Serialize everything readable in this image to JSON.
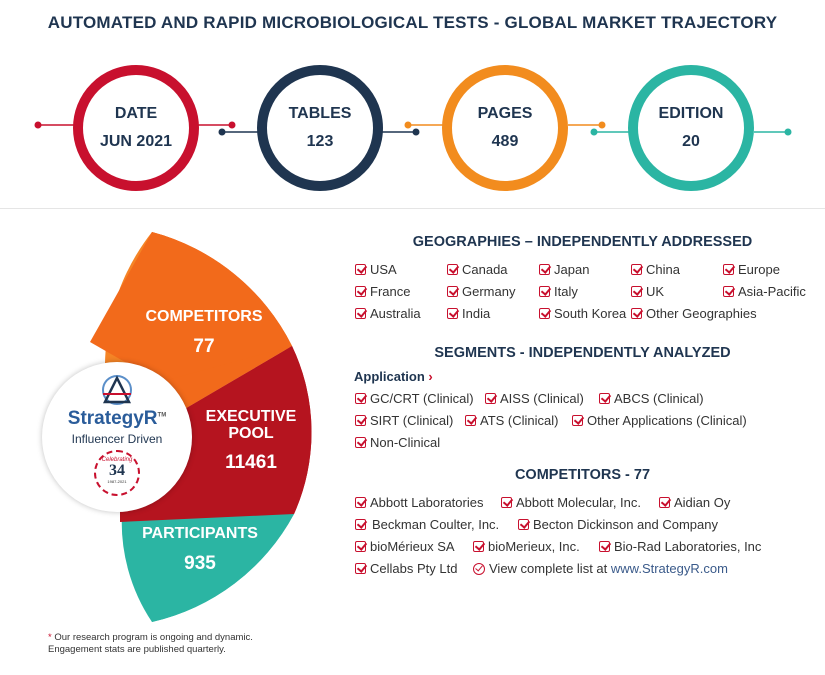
{
  "title": "AUTOMATED AND RAPID MICROBIOLOGICAL TESTS - GLOBAL MARKET TRAJECTORY",
  "stats": [
    {
      "label": "DATE",
      "value": "JUN 2021",
      "color": "#c8102e"
    },
    {
      "label": "TABLES",
      "value": "123",
      "color": "#1f3550"
    },
    {
      "label": "PAGES",
      "value": "489",
      "color": "#f28c1e"
    },
    {
      "label": "EDITION",
      "value": "20",
      "color": "#2bb5a3"
    }
  ],
  "left_panel": {
    "competitors": {
      "label": "COMPETITORS",
      "value": "77",
      "color": "#f26a1b"
    },
    "executive_pool": {
      "label": "EXECUTIVE POOL",
      "value": "11461",
      "color": "#b5141f"
    },
    "participants": {
      "label": "PARTICIPANTS",
      "value": "935",
      "color": "#2bb5a3"
    },
    "logo": {
      "brand": "StrategyR",
      "tm": "TM",
      "tagline": "Influencer Driven",
      "badge_number": "34",
      "badge_text": "Celebrating",
      "badge_years": "1987-2021"
    },
    "note_line1": "Our research program is ongoing and dynamic.",
    "note_line2": "Engagement stats are published quarterly.",
    "note_asterisk": "*"
  },
  "geographies": {
    "heading": "GEOGRAPHIES – INDEPENDENTLY ADDRESSED",
    "items": [
      "USA",
      "Canada",
      "Japan",
      "China",
      "Europe",
      "France",
      "Germany",
      "Italy",
      "UK",
      "Asia-Pacific",
      "Australia",
      "India",
      "South Korea",
      "Other Geographies"
    ]
  },
  "segments": {
    "heading": "SEGMENTS - INDEPENDENTLY ANALYZED",
    "application_label": "Application",
    "application_arrow": "›",
    "items": [
      "GC/CRT (Clinical)",
      "AISS (Clinical)",
      "ABCS (Clinical)",
      "SIRT (Clinical)",
      "ATS (Clinical)",
      "Other Applications (Clinical)",
      "Non-Clinical"
    ]
  },
  "competitors": {
    "heading": "COMPETITORS - 77",
    "items": [
      "Abbott Laboratories",
      "Abbott Molecular, Inc.",
      "Aidian Oy",
      "Beckman Coulter, Inc.",
      "Becton Dickinson and Company",
      "bioMérieux SA",
      "bioMerieux, Inc.",
      "Bio-Rad Laboratories, Inc",
      "Cellabs Pty Ltd"
    ],
    "view_text": "View complete list at",
    "view_link": "www.StrategyR.com"
  }
}
